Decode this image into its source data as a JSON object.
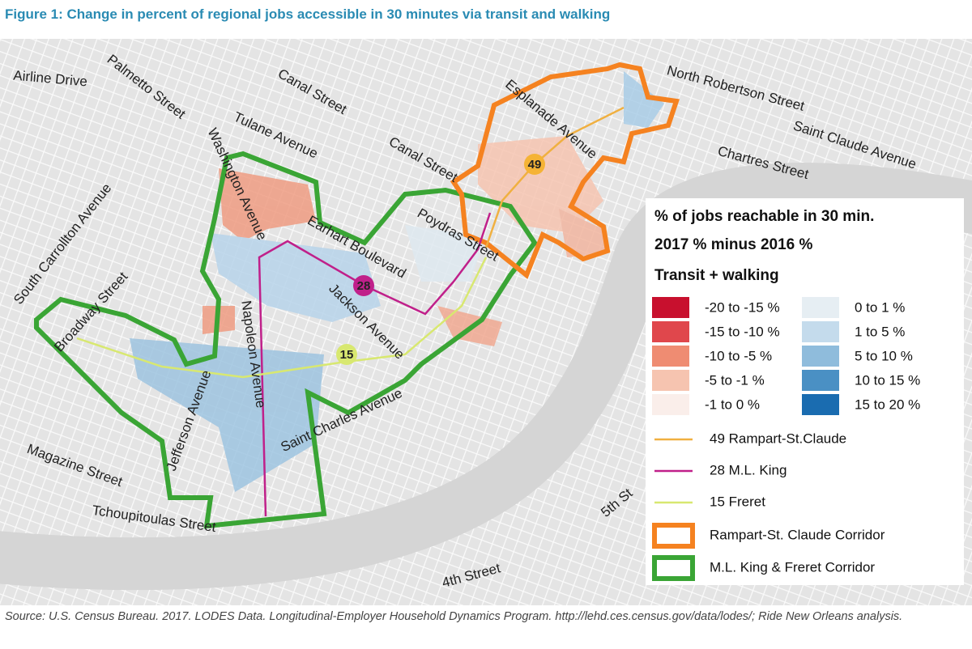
{
  "title": "Figure 1: Change in percent of regional jobs accessible in 30 minutes via transit and walking",
  "streets": [
    "Airline Drive",
    "Palmetto Street",
    "Washington Avenue",
    "Canal Street",
    "Tulane Avenue",
    "Canal Street",
    "Esplanade Avenue",
    "North Robertson Street",
    "Saint Claude Avenue",
    "Chartres Street",
    "South Carrollton Avenue",
    "Broadway Street",
    "Earhart Boulevard",
    "Poydras Street",
    "Jackson Avenue",
    "Napoleon Avenue",
    "Jefferson Avenue",
    "Saint Charles Avenue",
    "Magazine Street",
    "Tchoupitoulas Street",
    "5th St",
    "4th Street"
  ],
  "route_badges": [
    {
      "label": "49",
      "color": "#f5b335"
    },
    {
      "label": "28",
      "color": "#c0208a"
    },
    {
      "label": "15",
      "color": "#d8e870"
    }
  ],
  "legend": {
    "titles": [
      "% of jobs reachable in 30 min.",
      "2017 % minus 2016 %",
      "Transit + walking"
    ],
    "classes": [
      {
        "label": "-20 to -15 %",
        "color": "#c8102e"
      },
      {
        "label": "-15 to -10 %",
        "color": "#e0474c"
      },
      {
        "label": "-10 to -5 %",
        "color": "#ef8c72"
      },
      {
        "label": "-5 to -1 %",
        "color": "#f6c4b0"
      },
      {
        "label": "-1 to 0 %",
        "color": "#faeeea"
      },
      {
        "label": "0 to 1 %",
        "color": "#e6eef3"
      },
      {
        "label": "1 to 5 %",
        "color": "#c4dbec"
      },
      {
        "label": "5 to 10 %",
        "color": "#8fbcdc"
      },
      {
        "label": "10 to 15 %",
        "color": "#4a90c4"
      },
      {
        "label": "15 to 20 %",
        "color": "#1a6cb0"
      }
    ],
    "routes": [
      {
        "label": "49 Rampart-St.Claude",
        "color": "#f0b040"
      },
      {
        "label": "28 M.L. King",
        "color": "#c0208a"
      },
      {
        "label": "15 Freret",
        "color": "#d8e870"
      }
    ],
    "corridors": [
      {
        "label": "Rampart-St. Claude Corridor",
        "color": "#f58220"
      },
      {
        "label": "M.L. King & Freret Corridor",
        "color": "#3aa535"
      }
    ]
  },
  "source": "Source: U.S. Census Bureau. 2017. LODES Data. Longitudinal-Employer Household Dynamics Program. http://lehd.ces.census.gov/data/lodes/; Ride New Orleans analysis."
}
